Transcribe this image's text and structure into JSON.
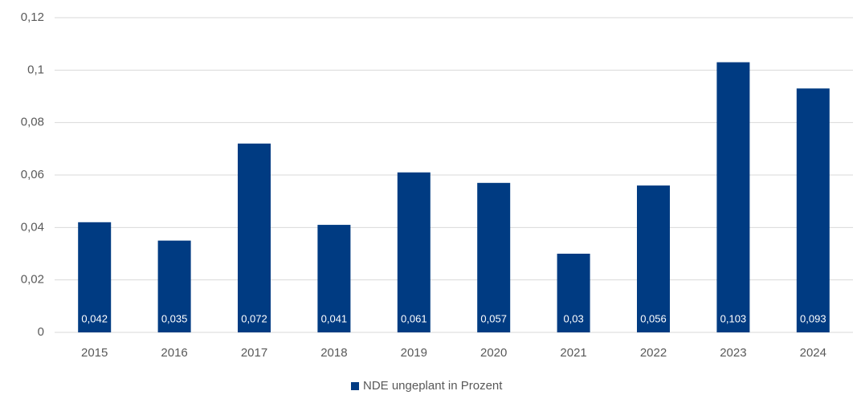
{
  "chart_data": {
    "type": "bar",
    "categories": [
      "2015",
      "2016",
      "2017",
      "2018",
      "2019",
      "2020",
      "2021",
      "2022",
      "2023",
      "2024"
    ],
    "series": [
      {
        "name": "NDE ungeplant in Prozent",
        "color": "#003b82",
        "values": [
          0.042,
          0.035,
          0.072,
          0.041,
          0.061,
          0.057,
          0.03,
          0.056,
          0.103,
          0.093
        ],
        "value_labels": [
          "0,042",
          "0,035",
          "0,072",
          "0,041",
          "0,061",
          "0,057",
          "0,03",
          "0,056",
          "0,103",
          "0,093"
        ]
      }
    ],
    "ylim": [
      0,
      0.12
    ],
    "yticks": [
      0,
      {
        "value": 0.02,
        "label": "0,02"
      },
      {
        "value": 0.04,
        "label": "0,04"
      },
      {
        "value": 0.06,
        "label": "0,06"
      },
      {
        "value": 0.08,
        "label": "0,08"
      },
      {
        "value": 0.1,
        "label": "0,1"
      },
      {
        "value": 0.12,
        "label": "0,12"
      }
    ],
    "grid": true,
    "legend": "bottom"
  }
}
